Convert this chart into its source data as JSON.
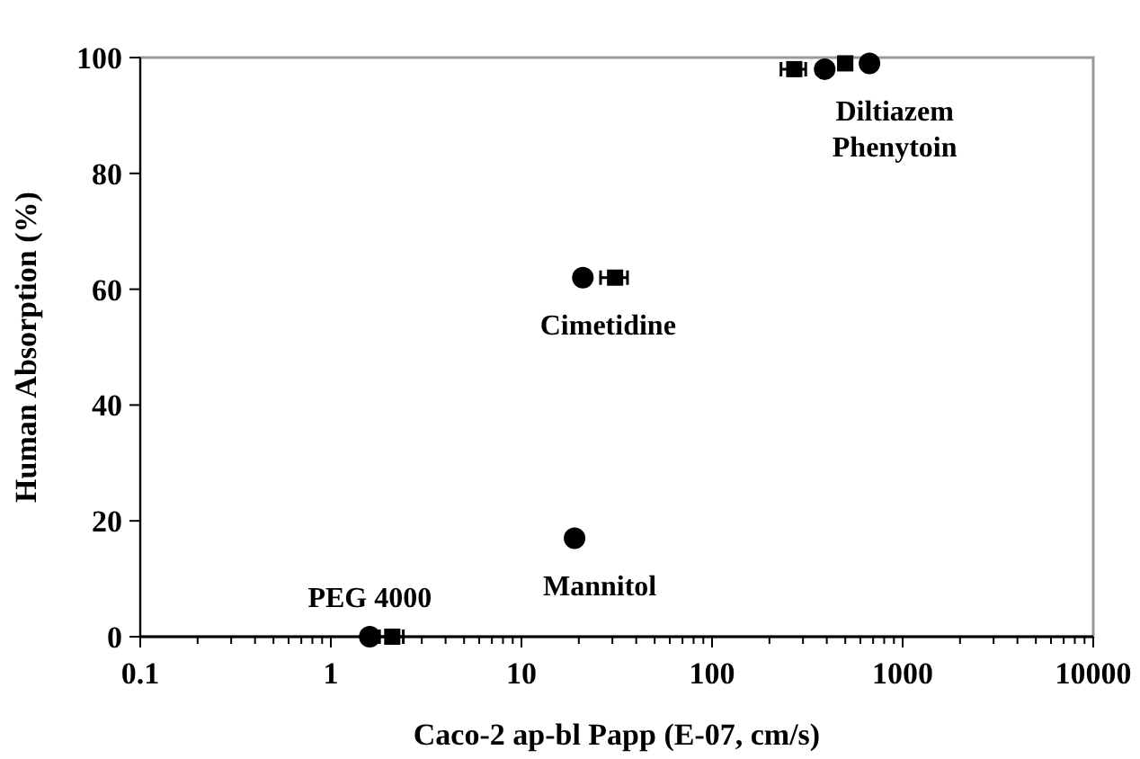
{
  "chart_data": {
    "type": "scatter",
    "xlabel": "Caco-2 ap-bl Papp (E-07, cm/s)",
    "ylabel": "Human Absorption (%)",
    "log": "x",
    "grid": false,
    "xlim": [
      0.1,
      10000
    ],
    "ylim": [
      0,
      100
    ],
    "xticks": [
      0.1,
      {
        "value": 0.2,
        "label": null
      },
      {
        "value": 0.3,
        "label": null
      },
      {
        "value": 0.4,
        "label": null
      },
      {
        "value": 0.5,
        "label": null
      },
      {
        "value": 0.6,
        "label": null
      },
      {
        "value": 0.7,
        "label": null
      },
      {
        "value": 0.8,
        "label": null
      },
      {
        "value": 0.9,
        "label": null
      },
      1,
      {
        "value": 2,
        "label": null
      },
      {
        "value": 3,
        "label": null
      },
      {
        "value": 4,
        "label": null
      },
      {
        "value": 5,
        "label": null
      },
      {
        "value": 6,
        "label": null
      },
      {
        "value": 7,
        "label": null
      },
      {
        "value": 8,
        "label": null
      },
      {
        "value": 9,
        "label": null
      },
      10,
      {
        "value": 20,
        "label": null
      },
      {
        "value": 30,
        "label": null
      },
      {
        "value": 40,
        "label": null
      },
      {
        "value": 50,
        "label": null
      },
      {
        "value": 60,
        "label": null
      },
      {
        "value": 70,
        "label": null
      },
      {
        "value": 80,
        "label": null
      },
      {
        "value": 90,
        "label": null
      },
      100,
      {
        "value": 200,
        "label": null
      },
      {
        "value": 300,
        "label": null
      },
      {
        "value": 400,
        "label": null
      },
      {
        "value": 500,
        "label": null
      },
      {
        "value": 600,
        "label": null
      },
      {
        "value": 700,
        "label": null
      },
      {
        "value": 800,
        "label": null
      },
      {
        "value": 900,
        "label": null
      },
      1000,
      {
        "value": 2000,
        "label": null
      },
      {
        "value": 3000,
        "label": null
      },
      {
        "value": 4000,
        "label": null
      },
      {
        "value": 5000,
        "label": null
      },
      {
        "value": 6000,
        "label": null
      },
      {
        "value": 7000,
        "label": null
      },
      {
        "value": 8000,
        "label": null
      },
      {
        "value": 9000,
        "label": null
      },
      10000
    ],
    "yticks": [
      0,
      20,
      40,
      60,
      80,
      100
    ],
    "series": [
      {
        "color": "#000000",
        "marker": "square",
        "x": [
          2.1,
          31,
          270,
          500
        ],
        "values": [
          0,
          62,
          98,
          99
        ],
        "xerrors": [
          0.3,
          5,
          40,
          40
        ]
      },
      {
        "color": "#000000",
        "marker": "circle",
        "x": [
          1.6,
          19,
          21,
          390,
          670
        ],
        "values": [
          0,
          17,
          62,
          98,
          99
        ]
      }
    ],
    "annotations": [
      {
        "text": "Diltiazem",
        "x": 670,
        "y": 99
      },
      {
        "text": "Phenytoin",
        "x": 670,
        "y": 99
      },
      {
        "text": "Cimetidine",
        "x": 21,
        "y": 62
      },
      {
        "text": "Mannitol",
        "x": 19,
        "y": 17
      },
      {
        "text": "PEG 4000",
        "x": 1.6,
        "y": 0
      }
    ]
  }
}
